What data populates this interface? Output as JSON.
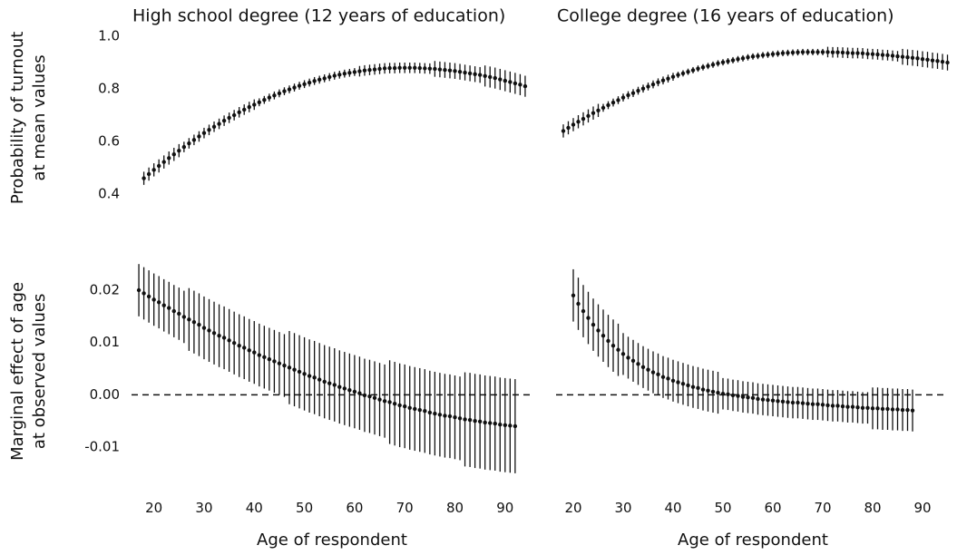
{
  "chart_data": [
    {
      "type": "errorbar",
      "title": "High school degree (12 years of education)",
      "ylabel": [
        "Probability of turnout",
        "at mean values"
      ],
      "color": "#111111",
      "xlim": [
        15,
        96
      ],
      "ylim": [
        0.34,
        1.04
      ],
      "yticks": [
        0.4,
        0.6,
        0.8,
        {
          "value": 1,
          "label": "1.0"
        }
      ],
      "x": [
        18,
        19,
        20,
        21,
        22,
        23,
        24,
        25,
        26,
        27,
        28,
        29,
        30,
        31,
        32,
        33,
        34,
        35,
        36,
        37,
        38,
        39,
        40,
        41,
        42,
        43,
        44,
        45,
        46,
        47,
        48,
        49,
        50,
        51,
        52,
        53,
        54,
        55,
        56,
        57,
        58,
        59,
        60,
        61,
        62,
        63,
        64,
        65,
        66,
        67,
        68,
        69,
        70,
        71,
        72,
        73,
        74,
        75,
        76,
        77,
        78,
        79,
        80,
        81,
        82,
        83,
        84,
        85,
        86,
        87,
        88,
        89,
        90,
        91,
        92,
        93,
        94
      ],
      "values": [
        0.46,
        0.476,
        0.492,
        0.507,
        0.522,
        0.537,
        0.551,
        0.565,
        0.579,
        0.593,
        0.606,
        0.619,
        0.632,
        0.644,
        0.656,
        0.667,
        0.679,
        0.69,
        0.7,
        0.711,
        0.721,
        0.731,
        0.74,
        0.749,
        0.758,
        0.767,
        0.775,
        0.783,
        0.791,
        0.798,
        0.805,
        0.812,
        0.818,
        0.824,
        0.83,
        0.835,
        0.84,
        0.845,
        0.85,
        0.854,
        0.858,
        0.861,
        0.864,
        0.867,
        0.87,
        0.872,
        0.874,
        0.876,
        0.878,
        0.879,
        0.879,
        0.88,
        0.88,
        0.88,
        0.88,
        0.879,
        0.878,
        0.877,
        0.876,
        0.874,
        0.872,
        0.87,
        0.868,
        0.865,
        0.862,
        0.859,
        0.856,
        0.853,
        0.849,
        0.845,
        0.841,
        0.836,
        0.831,
        0.826,
        0.821,
        0.816,
        0.81
      ],
      "errors": [
        0.025,
        0.025,
        0.025,
        0.025,
        0.025,
        0.025,
        0.025,
        0.025,
        0.02,
        0.02,
        0.02,
        0.02,
        0.02,
        0.02,
        0.02,
        0.02,
        0.02,
        0.02,
        0.02,
        0.02,
        0.02,
        0.02,
        0.02,
        0.015,
        0.015,
        0.015,
        0.015,
        0.015,
        0.015,
        0.015,
        0.015,
        0.015,
        0.015,
        0.015,
        0.015,
        0.015,
        0.015,
        0.015,
        0.015,
        0.015,
        0.015,
        0.015,
        0.015,
        0.02,
        0.02,
        0.02,
        0.02,
        0.02,
        0.02,
        0.02,
        0.02,
        0.02,
        0.02,
        0.02,
        0.02,
        0.02,
        0.02,
        0.02,
        0.03,
        0.03,
        0.03,
        0.03,
        0.03,
        0.03,
        0.03,
        0.03,
        0.03,
        0.03,
        0.04,
        0.04,
        0.04,
        0.04,
        0.04,
        0.04,
        0.04,
        0.04,
        0.04
      ]
    },
    {
      "type": "errorbar",
      "title": "College degree (16 years of education)",
      "color": "#111111",
      "xlim": [
        16,
        96
      ],
      "ylim": [
        0.34,
        1.04
      ],
      "x": [
        18,
        19,
        20,
        21,
        22,
        23,
        24,
        25,
        26,
        27,
        28,
        29,
        30,
        31,
        32,
        33,
        34,
        35,
        36,
        37,
        38,
        39,
        40,
        41,
        42,
        43,
        44,
        45,
        46,
        47,
        48,
        49,
        50,
        51,
        52,
        53,
        54,
        55,
        56,
        57,
        58,
        59,
        60,
        61,
        62,
        63,
        64,
        65,
        66,
        67,
        68,
        69,
        70,
        71,
        72,
        73,
        74,
        75,
        76,
        77,
        78,
        79,
        80,
        81,
        82,
        83,
        84,
        85,
        86,
        87,
        88,
        89,
        90,
        91,
        92,
        93,
        94,
        95
      ],
      "values": [
        0.64,
        0.652,
        0.664,
        0.675,
        0.686,
        0.697,
        0.708,
        0.718,
        0.728,
        0.738,
        0.748,
        0.757,
        0.767,
        0.776,
        0.784,
        0.793,
        0.801,
        0.809,
        0.817,
        0.825,
        0.832,
        0.839,
        0.846,
        0.853,
        0.859,
        0.865,
        0.871,
        0.877,
        0.882,
        0.887,
        0.892,
        0.897,
        0.901,
        0.905,
        0.909,
        0.913,
        0.916,
        0.92,
        0.923,
        0.925,
        0.928,
        0.93,
        0.932,
        0.934,
        0.936,
        0.937,
        0.938,
        0.939,
        0.94,
        0.94,
        0.94,
        0.94,
        0.94,
        0.94,
        0.939,
        0.939,
        0.938,
        0.937,
        0.936,
        0.936,
        0.935,
        0.933,
        0.932,
        0.931,
        0.929,
        0.928,
        0.926,
        0.924,
        0.922,
        0.92,
        0.918,
        0.916,
        0.913,
        0.911,
        0.908,
        0.906,
        0.903,
        0.9
      ],
      "errors": [
        0.025,
        0.025,
        0.025,
        0.025,
        0.025,
        0.025,
        0.025,
        0.025,
        0.015,
        0.015,
        0.015,
        0.015,
        0.015,
        0.015,
        0.015,
        0.015,
        0.015,
        0.015,
        0.015,
        0.015,
        0.015,
        0.015,
        0.015,
        0.012,
        0.012,
        0.012,
        0.012,
        0.012,
        0.012,
        0.012,
        0.012,
        0.012,
        0.012,
        0.012,
        0.012,
        0.012,
        0.012,
        0.012,
        0.012,
        0.012,
        0.012,
        0.012,
        0.012,
        0.012,
        0.012,
        0.012,
        0.012,
        0.012,
        0.012,
        0.012,
        0.012,
        0.012,
        0.012,
        0.02,
        0.02,
        0.02,
        0.02,
        0.02,
        0.02,
        0.02,
        0.02,
        0.02,
        0.02,
        0.02,
        0.02,
        0.02,
        0.02,
        0.02,
        0.03,
        0.03,
        0.03,
        0.03,
        0.03,
        0.03,
        0.03,
        0.03,
        0.03,
        0.03
      ]
    },
    {
      "type": "errorbar",
      "ylabel": [
        "Marginal effect of age",
        "at observed values"
      ],
      "xlabel": "Age of respondent",
      "color": "#111111",
      "reference_line": 0,
      "xlim": [
        15,
        96
      ],
      "ylim": [
        -0.017,
        0.026
      ],
      "yticks": [
        -0.01,
        {
          "value": 0,
          "label": "0.00"
        },
        0.01,
        0.02
      ],
      "xticks": [
        20,
        30,
        40,
        50,
        60,
        70,
        80,
        90
      ],
      "x": [
        17,
        18,
        19,
        20,
        21,
        22,
        23,
        24,
        25,
        26,
        27,
        28,
        29,
        30,
        31,
        32,
        33,
        34,
        35,
        36,
        37,
        38,
        39,
        40,
        41,
        42,
        43,
        44,
        45,
        46,
        47,
        48,
        49,
        50,
        51,
        52,
        53,
        54,
        55,
        56,
        57,
        58,
        59,
        60,
        61,
        62,
        63,
        64,
        65,
        66,
        67,
        68,
        69,
        70,
        71,
        72,
        73,
        74,
        75,
        76,
        77,
        78,
        79,
        80,
        81,
        82,
        83,
        84,
        85,
        86,
        87,
        88,
        89,
        90,
        91,
        92
      ],
      "values": [
        0.02,
        0.0194,
        0.0188,
        0.0182,
        0.0177,
        0.0171,
        0.0166,
        0.016,
        0.0155,
        0.0149,
        0.0144,
        0.0139,
        0.0134,
        0.0128,
        0.0123,
        0.0118,
        0.0113,
        0.0109,
        0.0104,
        0.0099,
        0.0094,
        0.009,
        0.0085,
        0.0081,
        0.0076,
        0.0072,
        0.0068,
        0.0064,
        0.006,
        0.0056,
        0.0052,
        0.0048,
        0.0044,
        0.004,
        0.0036,
        0.0033,
        0.0029,
        0.0025,
        0.0022,
        0.0019,
        0.0015,
        0.0012,
        0.0009,
        0.0006,
        0.0003,
        -0.0001,
        -0.0003,
        -0.0006,
        -0.0009,
        -0.0012,
        -0.0014,
        -0.0017,
        -0.002,
        -0.0022,
        -0.0025,
        -0.0027,
        -0.0029,
        -0.0031,
        -0.0034,
        -0.0036,
        -0.0038,
        -0.004,
        -0.0041,
        -0.0043,
        -0.0045,
        -0.0047,
        -0.0048,
        -0.005,
        -0.0051,
        -0.0053,
        -0.0054,
        -0.0055,
        -0.0057,
        -0.0058,
        -0.0059,
        -0.006
      ],
      "errors": [
        0.005,
        0.005,
        0.005,
        0.005,
        0.005,
        0.005,
        0.005,
        0.005,
        0.005,
        0.005,
        0.006,
        0.006,
        0.006,
        0.006,
        0.006,
        0.006,
        0.006,
        0.006,
        0.006,
        0.006,
        0.006,
        0.006,
        0.006,
        0.006,
        0.006,
        0.006,
        0.006,
        0.006,
        0.006,
        0.006,
        0.007,
        0.007,
        0.007,
        0.007,
        0.007,
        0.007,
        0.007,
        0.007,
        0.007,
        0.007,
        0.007,
        0.007,
        0.007,
        0.007,
        0.007,
        0.007,
        0.007,
        0.007,
        0.007,
        0.007,
        0.008,
        0.008,
        0.008,
        0.008,
        0.008,
        0.008,
        0.008,
        0.008,
        0.008,
        0.008,
        0.008,
        0.008,
        0.008,
        0.008,
        0.008,
        0.009,
        0.009,
        0.009,
        0.009,
        0.009,
        0.009,
        0.009,
        0.009,
        0.009,
        0.009,
        0.009
      ]
    },
    {
      "type": "errorbar",
      "xlabel": "Age of respondent",
      "color": "#111111",
      "reference_line": 0,
      "xlim": [
        16,
        96
      ],
      "ylim": [
        -0.017,
        0.026
      ],
      "xticks": [
        20,
        30,
        40,
        50,
        60,
        70,
        80,
        90
      ],
      "x": [
        20,
        21,
        22,
        23,
        24,
        25,
        26,
        27,
        28,
        29,
        30,
        31,
        32,
        33,
        34,
        35,
        36,
        37,
        38,
        39,
        40,
        41,
        42,
        43,
        44,
        45,
        46,
        47,
        48,
        49,
        50,
        51,
        52,
        53,
        54,
        55,
        56,
        57,
        58,
        59,
        60,
        61,
        62,
        63,
        64,
        65,
        66,
        67,
        68,
        69,
        70,
        71,
        72,
        73,
        74,
        75,
        76,
        77,
        78,
        79,
        80,
        81,
        82,
        83,
        84,
        85,
        86,
        87,
        88
      ],
      "values": [
        0.019,
        0.0174,
        0.016,
        0.0147,
        0.0134,
        0.0123,
        0.0113,
        0.0103,
        0.0094,
        0.0086,
        0.0078,
        0.0071,
        0.0065,
        0.0059,
        0.0053,
        0.0048,
        0.0043,
        0.0039,
        0.0034,
        0.0031,
        0.0027,
        0.0024,
        0.0021,
        0.0018,
        0.0015,
        0.0013,
        0.001,
        0.0008,
        0.0006,
        0.0004,
        0.0002,
        0.0001,
        -0.0001,
        -0.0002,
        -0.0004,
        -0.0005,
        -0.0006,
        -0.0008,
        -0.0009,
        -0.001,
        -0.0011,
        -0.0012,
        -0.0013,
        -0.0014,
        -0.0015,
        -0.0015,
        -0.0016,
        -0.0017,
        -0.0018,
        -0.0018,
        -0.0019,
        -0.002,
        -0.0021,
        -0.0021,
        -0.0022,
        -0.0023,
        -0.0023,
        -0.0024,
        -0.0025,
        -0.0025,
        -0.0026,
        -0.0026,
        -0.0027,
        -0.0027,
        -0.0028,
        -0.0028,
        -0.0029,
        -0.0029,
        -0.003
      ],
      "errors": [
        0.005,
        0.005,
        0.005,
        0.005,
        0.005,
        0.005,
        0.005,
        0.005,
        0.005,
        0.005,
        0.004,
        0.004,
        0.004,
        0.004,
        0.004,
        0.004,
        0.004,
        0.004,
        0.004,
        0.004,
        0.004,
        0.004,
        0.004,
        0.004,
        0.004,
        0.004,
        0.004,
        0.004,
        0.004,
        0.004,
        0.003,
        0.003,
        0.003,
        0.003,
        0.003,
        0.003,
        0.003,
        0.003,
        0.003,
        0.003,
        0.003,
        0.003,
        0.003,
        0.003,
        0.003,
        0.003,
        0.003,
        0.003,
        0.003,
        0.003,
        0.003,
        0.003,
        0.003,
        0.003,
        0.003,
        0.003,
        0.003,
        0.003,
        0.003,
        0.003,
        0.004,
        0.004,
        0.004,
        0.004,
        0.004,
        0.004,
        0.004,
        0.004,
        0.004
      ]
    }
  ]
}
